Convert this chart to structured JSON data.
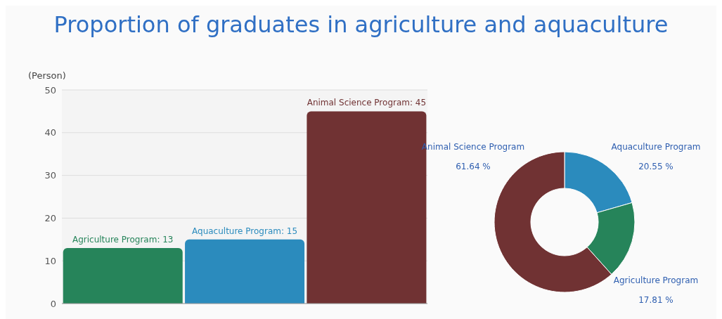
{
  "chart_data": [
    {
      "type": "bar",
      "title": "Proportion of graduates in agriculture and aquaculture",
      "ylabel": "(Person)",
      "categories": [
        null,
        null,
        null
      ],
      "values": [
        13,
        15,
        45
      ],
      "colors": [
        "#26845a",
        "#2b8bbd",
        "#703233"
      ],
      "value_labels": [
        "Agriculture Program: 13",
        "Aquaculture Program: 15",
        "Animal Science Program: 45"
      ],
      "ylim": [
        0,
        50
      ],
      "yticks": [
        0,
        10,
        20,
        30,
        40,
        50
      ],
      "grid": "y"
    },
    {
      "type": "donut",
      "categories": [
        "Aquaculture Program",
        "Agriculture Program",
        "Animal Science Program"
      ],
      "values": [
        20.55,
        17.81,
        61.64
      ],
      "colors": [
        "#2b8bbd",
        "#26845a",
        "#703233"
      ],
      "value_labels": [
        "20.55 %",
        "17.81 %",
        "61.64 %"
      ]
    }
  ]
}
